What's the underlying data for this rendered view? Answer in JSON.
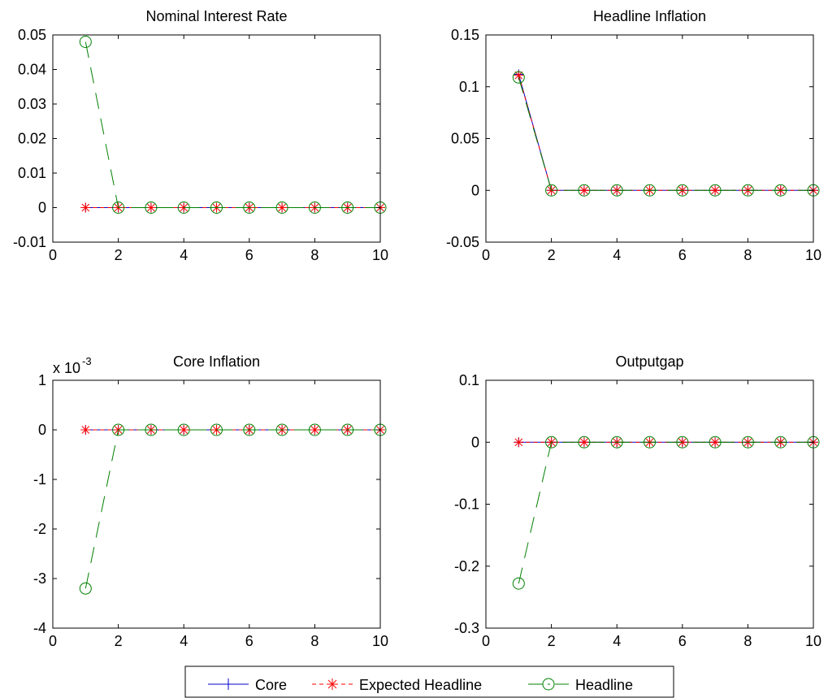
{
  "chart_data": [
    {
      "type": "line",
      "title": "Nominal Interest Rate",
      "x": [
        1,
        2,
        3,
        4,
        5,
        6,
        7,
        8,
        9,
        10
      ],
      "xlim": [
        0,
        10
      ],
      "ylim": [
        -0.01,
        0.05
      ],
      "xticks": [
        "0",
        "2",
        "4",
        "6",
        "8",
        "10"
      ],
      "yticks": [
        "-0.01",
        "0",
        "0.01",
        "0.02",
        "0.03",
        "0.04",
        "0.05"
      ],
      "exponent_label": "",
      "series": [
        {
          "name": "Core",
          "values": [
            0,
            0,
            0,
            0,
            0,
            0,
            0,
            0,
            0,
            0
          ]
        },
        {
          "name": "Expected Headline",
          "values": [
            0,
            0,
            0,
            0,
            0,
            0,
            0,
            0,
            0,
            0
          ]
        },
        {
          "name": "Headline",
          "values": [
            0.048,
            0,
            0,
            0,
            0,
            0,
            0,
            0,
            0,
            0
          ]
        }
      ]
    },
    {
      "type": "line",
      "title": "Headline Inflation",
      "x": [
        1,
        2,
        3,
        4,
        5,
        6,
        7,
        8,
        9,
        10
      ],
      "xlim": [
        0,
        10
      ],
      "ylim": [
        -0.05,
        0.15
      ],
      "xticks": [
        "0",
        "2",
        "4",
        "6",
        "8",
        "10"
      ],
      "yticks": [
        "-0.05",
        "0",
        "0.05",
        "0.1",
        "0.15"
      ],
      "exponent_label": "",
      "series": [
        {
          "name": "Core",
          "values": [
            0.112,
            0,
            0,
            0,
            0,
            0,
            0,
            0,
            0,
            0
          ]
        },
        {
          "name": "Expected Headline",
          "values": [
            0.111,
            0,
            0,
            0,
            0,
            0,
            0,
            0,
            0,
            0
          ]
        },
        {
          "name": "Headline",
          "values": [
            0.109,
            0,
            0,
            0,
            0,
            0,
            0,
            0,
            0,
            0
          ]
        }
      ]
    },
    {
      "type": "line",
      "title": "Core Inflation",
      "x": [
        1,
        2,
        3,
        4,
        5,
        6,
        7,
        8,
        9,
        10
      ],
      "xlim": [
        0,
        10
      ],
      "ylim": [
        -4,
        1
      ],
      "xticks": [
        "0",
        "2",
        "4",
        "6",
        "8",
        "10"
      ],
      "yticks": [
        "-4",
        "-3",
        "-2",
        "-1",
        "0",
        "1"
      ],
      "exponent_label": "x 10",
      "exponent_power": "-3",
      "series": [
        {
          "name": "Core",
          "values": [
            0,
            0,
            0,
            0,
            0,
            0,
            0,
            0,
            0,
            0
          ]
        },
        {
          "name": "Expected Headline",
          "values": [
            0,
            0,
            0,
            0,
            0,
            0,
            0,
            0,
            0,
            0
          ]
        },
        {
          "name": "Headline",
          "values": [
            -3.2,
            0,
            0,
            0,
            0,
            0,
            0,
            0,
            0,
            0
          ]
        }
      ]
    },
    {
      "type": "line",
      "title": "Outputgap",
      "x": [
        1,
        2,
        3,
        4,
        5,
        6,
        7,
        8,
        9,
        10
      ],
      "xlim": [
        0,
        10
      ],
      "ylim": [
        -0.3,
        0.1
      ],
      "xticks": [
        "0",
        "2",
        "4",
        "6",
        "8",
        "10"
      ],
      "yticks": [
        "-0.3",
        "-0.2",
        "-0.1",
        "0",
        "0.1"
      ],
      "exponent_label": "",
      "series": [
        {
          "name": "Core",
          "values": [
            0,
            0,
            0,
            0,
            0,
            0,
            0,
            0,
            0,
            0
          ]
        },
        {
          "name": "Expected Headline",
          "values": [
            0,
            0,
            0,
            0,
            0,
            0,
            0,
            0,
            0,
            0
          ]
        },
        {
          "name": "Headline",
          "values": [
            -0.228,
            0,
            0,
            0,
            0,
            0,
            0,
            0,
            0,
            0
          ]
        }
      ]
    }
  ],
  "legend": {
    "placement": "bottom-center",
    "entries": [
      {
        "label": "Core",
        "color": "#0000cc",
        "marker": "plus",
        "dash": "solid"
      },
      {
        "label": "Expected Headline",
        "color": "#ff0000",
        "marker": "star",
        "dash": "dashed"
      },
      {
        "label": "Headline",
        "color": "#008000",
        "marker": "circle",
        "dash": "dash-dot"
      }
    ]
  },
  "series_styles": [
    {
      "color": "#0000cc",
      "marker": "plus-icon",
      "dash": "solid"
    },
    {
      "color": "#ff0000",
      "marker": "star-icon",
      "dash": "dashed"
    },
    {
      "color": "#008000",
      "marker": "circle-icon",
      "dash": "long-dash"
    }
  ]
}
